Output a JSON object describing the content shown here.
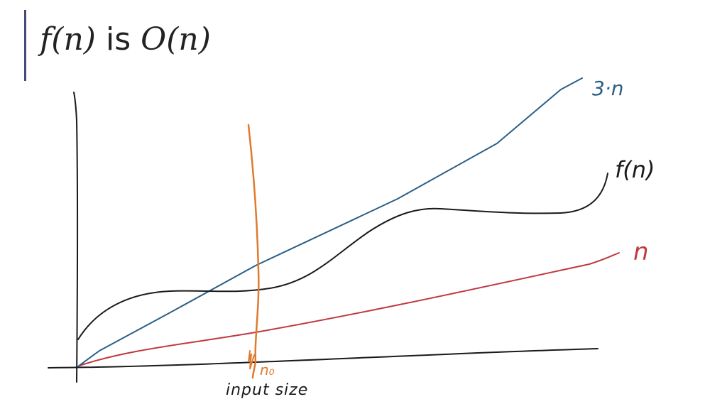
{
  "slide": {
    "title_fn": "f(n)",
    "title_is": "is",
    "title_bigo": "O(n)"
  },
  "diagram": {
    "labels": {
      "upper_bound": "3·n",
      "function": "f(n)",
      "lower": "n",
      "threshold": "n₀",
      "x_axis": "input size"
    },
    "colors": {
      "axes": "#1a1a1a",
      "upper_bound": "#2a5f87",
      "function": "#1a1a1a",
      "lower": "#c0393f",
      "threshold": "#e07a2e"
    }
  }
}
